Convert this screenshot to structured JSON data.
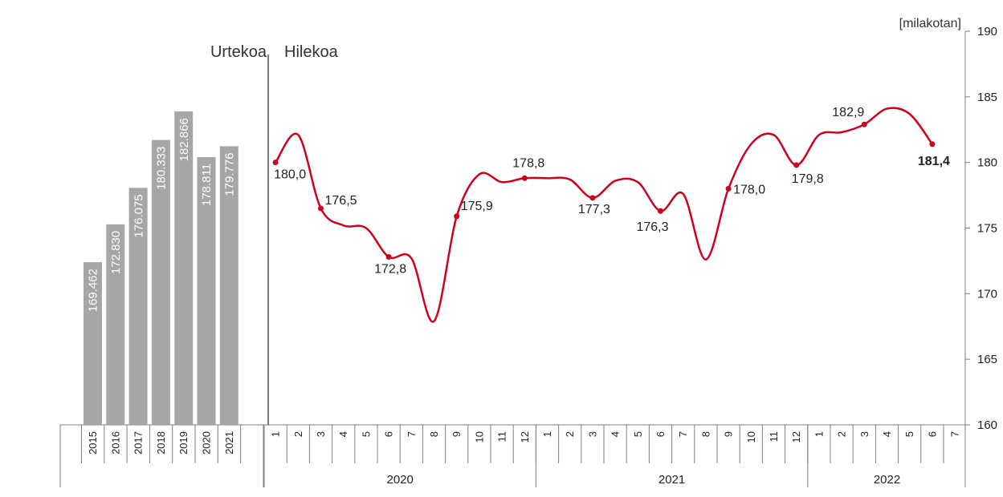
{
  "chart_data": {
    "type": "bar+line",
    "unit_label": "[milakotan]",
    "annual": {
      "section_label": "Urtekoa",
      "categories": [
        "2015",
        "2016",
        "2017",
        "2018",
        "2019",
        "2020",
        "2021"
      ],
      "values": [
        169.462,
        172.83,
        176.075,
        180.333,
        182.866,
        178.811,
        179.776
      ],
      "labels": [
        "169.462",
        "172.830",
        "176.075",
        "180.333",
        "182.866",
        "178.811",
        "179.776"
      ],
      "color": "#a6a6a6"
    },
    "monthly": {
      "section_label": "Hilekoa",
      "months": [
        "1",
        "2",
        "3",
        "4",
        "5",
        "6",
        "7",
        "8",
        "9",
        "10",
        "11",
        "12",
        "1",
        "2",
        "3",
        "4",
        "5",
        "6",
        "7",
        "8",
        "9",
        "10",
        "11",
        "12",
        "1",
        "2",
        "3",
        "4",
        "5",
        "6",
        "7"
      ],
      "years": [
        {
          "label": "2020",
          "span": 12
        },
        {
          "label": "2021",
          "span": 12
        },
        {
          "label": "2022",
          "span": 7
        }
      ],
      "values": [
        180.0,
        182.1,
        176.5,
        175.2,
        175.0,
        172.8,
        172.7,
        167.9,
        175.9,
        179.1,
        178.5,
        178.8,
        178.8,
        178.7,
        177.3,
        178.6,
        178.5,
        176.3,
        177.6,
        172.6,
        178.0,
        181.4,
        182.1,
        179.8,
        182.1,
        182.3,
        182.9,
        184.1,
        183.7,
        181.4,
        null
      ],
      "point_labels": [
        {
          "index": 0,
          "text": "180,0",
          "bold": false
        },
        {
          "index": 2,
          "text": "176,5",
          "bold": false
        },
        {
          "index": 5,
          "text": "172,8",
          "bold": false
        },
        {
          "index": 8,
          "text": "175,9",
          "bold": false
        },
        {
          "index": 11,
          "text": "178,8",
          "bold": false
        },
        {
          "index": 14,
          "text": "177,3",
          "bold": false
        },
        {
          "index": 17,
          "text": "176,3",
          "bold": false
        },
        {
          "index": 20,
          "text": "178,0",
          "bold": false
        },
        {
          "index": 23,
          "text": "179,8",
          "bold": false
        },
        {
          "index": 26,
          "text": "182,9",
          "bold": false
        },
        {
          "index": 29,
          "text": "181,4",
          "bold": true
        }
      ],
      "color": "#d0021b"
    },
    "y_axis": {
      "position": "right",
      "ylim": [
        160,
        190
      ],
      "ticks": [
        "160",
        "165",
        "170",
        "175",
        "180",
        "185",
        "190"
      ]
    },
    "grid": false
  }
}
